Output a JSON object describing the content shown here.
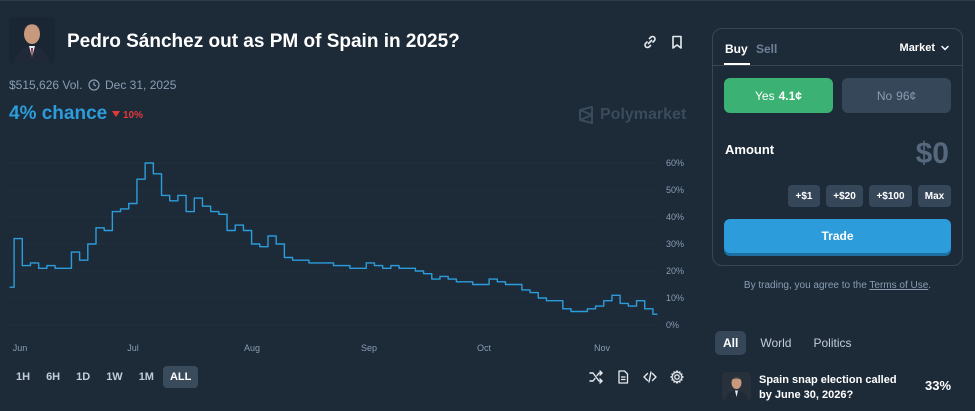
{
  "market": {
    "title": "Pedro Sánchez out as PM of Spain in 2025?",
    "volume": "$515,626 Vol.",
    "end_date": "Dec 31, 2025",
    "chance": "4% chance",
    "change": "10%",
    "brand": "Polymarket",
    "image_icon": "portrait-photo"
  },
  "header_icons": [
    "link-icon",
    "bookmark-icon"
  ],
  "chart_data": {
    "type": "line",
    "x_labels": [
      "Jun",
      "Jul",
      "Aug",
      "Sep",
      "Oct",
      "Nov"
    ],
    "y_ticks": [
      "60%",
      "50%",
      "40%",
      "30%",
      "20%",
      "10%",
      "0%"
    ],
    "ylim": [
      0,
      65
    ],
    "grid": true,
    "series": [
      {
        "color": "#2d9cdb",
        "x": [
          0,
          1,
          2,
          3,
          4,
          5,
          6,
          7,
          8,
          9,
          10,
          11,
          12,
          13,
          14,
          15,
          16,
          17,
          18,
          19,
          20,
          21,
          22,
          23,
          24,
          25,
          26,
          27,
          28,
          29,
          30,
          31,
          32,
          33,
          34,
          35,
          36,
          37,
          38,
          39,
          40,
          41,
          42,
          43,
          44,
          45,
          46,
          47,
          48,
          49,
          50,
          51,
          52,
          53,
          54,
          55,
          56,
          57,
          58,
          59,
          60,
          61,
          62,
          63,
          64,
          65,
          66,
          67,
          68,
          69,
          70,
          71,
          72,
          73,
          74,
          75,
          76,
          77,
          78,
          79
        ],
        "values": [
          14,
          32,
          22,
          23,
          21,
          22,
          21,
          21,
          27,
          24,
          30,
          36,
          35,
          42,
          43,
          45,
          54,
          60,
          56,
          48,
          46,
          48,
          42,
          47,
          44,
          42,
          41,
          35,
          37,
          35,
          30,
          29,
          33,
          30,
          25,
          24,
          24,
          23,
          23,
          23,
          22,
          22,
          21,
          21,
          23,
          22,
          21,
          22,
          21,
          21,
          20,
          19,
          17,
          18,
          17,
          16,
          16,
          15,
          15,
          17,
          16,
          15,
          15,
          13,
          12,
          10,
          9,
          9,
          6,
          5,
          5,
          6,
          7,
          9,
          11,
          8,
          7,
          9,
          6,
          4
        ]
      }
    ]
  },
  "range_buttons": [
    "1H",
    "6H",
    "1D",
    "1W",
    "1M",
    "ALL"
  ],
  "active_range": "ALL",
  "chart_tools": [
    "shuffle-icon",
    "document-icon",
    "embed-icon",
    "settings-icon"
  ],
  "trade": {
    "tab_buy": "Buy",
    "tab_sell": "Sell",
    "order_type": "Market",
    "yes_label": "Yes",
    "yes_price": "4.1¢",
    "no_label": "No",
    "no_price": "96¢",
    "amount_label": "Amount",
    "amount_value": "$0",
    "quick_amounts": [
      "+$1",
      "+$20",
      "+$100",
      "Max"
    ],
    "trade_button": "Trade",
    "terms_prefix": "By trading, you agree to the",
    "terms_link": "Terms of Use",
    "terms_suffix": "."
  },
  "categories": {
    "items": [
      "All",
      "World",
      "Politics"
    ],
    "active": "All"
  },
  "related": {
    "title": "Spain snap election called by June 30, 2026?",
    "percent": "33%"
  },
  "colors": {
    "background": "#1d2b39",
    "accent_blue": "#2d9cdb",
    "yes_green": "#3bb273",
    "down_red": "#e23939"
  }
}
